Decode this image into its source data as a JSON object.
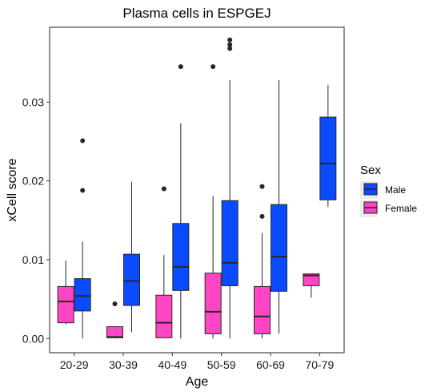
{
  "chart_data": {
    "type": "boxplot",
    "title": "Plasma cells in ESPGEJ",
    "xlabel": "Age",
    "ylabel": "xCell score",
    "ylim": [
      -0.0018,
      0.0395
    ],
    "yticks": [
      0.0,
      0.01,
      0.02,
      0.03
    ],
    "ytick_labels": [
      "0.00",
      "0.01",
      "0.02",
      "0.03"
    ],
    "categories": [
      "20-29",
      "30-39",
      "40-49",
      "50-59",
      "60-69",
      "70-79"
    ],
    "grid": false,
    "legend_position": "right",
    "legend": {
      "title": "Sex",
      "entries": [
        "Male",
        "Female"
      ]
    },
    "series": [
      {
        "name": "Male",
        "color": "#0A4BFF",
        "boxes": [
          {
            "category": "20-29",
            "whisker_low": 0.0,
            "q1": 0.0035,
            "median": 0.0054,
            "q3": 0.0076,
            "whisker_high": 0.0123,
            "outliers": [
              0.0188,
              0.0251
            ]
          },
          {
            "category": "30-39",
            "whisker_low": 0.0008,
            "q1": 0.0042,
            "median": 0.0073,
            "q3": 0.0107,
            "whisker_high": 0.0199,
            "outliers": []
          },
          {
            "category": "40-49",
            "whisker_low": 0.0,
            "q1": 0.0061,
            "median": 0.0091,
            "q3": 0.0146,
            "whisker_high": 0.0273,
            "outliers": [
              0.0345
            ]
          },
          {
            "category": "50-59",
            "whisker_low": 0.0,
            "q1": 0.0067,
            "median": 0.0096,
            "q3": 0.0175,
            "whisker_high": 0.0328,
            "outliers": [
              0.0368,
              0.0373,
              0.0379
            ]
          },
          {
            "category": "60-69",
            "whisker_low": 0.0006,
            "q1": 0.006,
            "median": 0.0104,
            "q3": 0.017,
            "whisker_high": 0.0328,
            "outliers": []
          },
          {
            "category": "70-79",
            "whisker_low": 0.0167,
            "q1": 0.0176,
            "median": 0.0222,
            "q3": 0.0281,
            "whisker_high": 0.0322,
            "outliers": []
          }
        ]
      },
      {
        "name": "Female",
        "color": "#FF44C4",
        "boxes": [
          {
            "category": "20-29",
            "whisker_low": 0.0018,
            "q1": 0.002,
            "median": 0.0047,
            "q3": 0.0066,
            "whisker_high": 0.0099,
            "outliers": []
          },
          {
            "category": "30-39",
            "whisker_low": 0.0,
            "q1": 0.0001,
            "median": 0.0002,
            "q3": 0.0015,
            "whisker_high": 0.0015,
            "outliers": [
              0.0044
            ]
          },
          {
            "category": "40-49",
            "whisker_low": 0.0001,
            "q1": 0.0001,
            "median": 0.002,
            "q3": 0.0055,
            "whisker_high": 0.0106,
            "outliers": [
              0.019
            ]
          },
          {
            "category": "50-59",
            "whisker_low": 0.0,
            "q1": 0.0006,
            "median": 0.0034,
            "q3": 0.0083,
            "whisker_high": 0.0181,
            "outliers": [
              0.0345
            ]
          },
          {
            "category": "60-69",
            "whisker_low": 0.0,
            "q1": 0.0006,
            "median": 0.0028,
            "q3": 0.0066,
            "whisker_high": 0.0134,
            "outliers": [
              0.0155,
              0.0193
            ]
          },
          {
            "category": "70-79",
            "whisker_low": 0.0052,
            "q1": 0.0067,
            "median": 0.008,
            "q3": 0.0082,
            "whisker_high": 0.0082,
            "outliers": []
          }
        ]
      }
    ]
  }
}
